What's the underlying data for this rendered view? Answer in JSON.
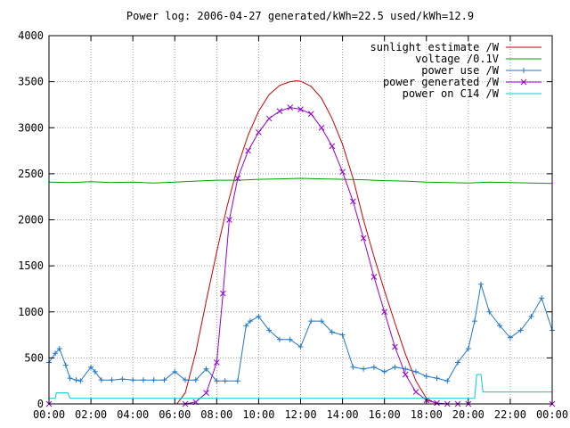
{
  "chart_data": {
    "type": "line",
    "title": "Power log: 2006-04-27 generated/kWh=22.5 used/kWh=12.9",
    "xlabel": "",
    "ylabel": "",
    "x_unit": "hours",
    "xlim": [
      0,
      24
    ],
    "ylim": [
      0,
      4000
    ],
    "grid": true,
    "legend_position": "top-right",
    "x_ticks": [
      {
        "value": 0,
        "label": "00:00"
      },
      {
        "value": 2,
        "label": "02:00"
      },
      {
        "value": 4,
        "label": "04:00"
      },
      {
        "value": 6,
        "label": "06:00"
      },
      {
        "value": 8,
        "label": "08:00"
      },
      {
        "value": 10,
        "label": "10:00"
      },
      {
        "value": 12,
        "label": "12:00"
      },
      {
        "value": 14,
        "label": "14:00"
      },
      {
        "value": 16,
        "label": "16:00"
      },
      {
        "value": 18,
        "label": "18:00"
      },
      {
        "value": 20,
        "label": "20:00"
      },
      {
        "value": 22,
        "label": "22:00"
      },
      {
        "value": 24,
        "label": "00:00"
      }
    ],
    "y_ticks": [
      0,
      500,
      1000,
      1500,
      2000,
      2500,
      3000,
      3500,
      4000
    ],
    "series": [
      {
        "name": "sunlight estimate /W",
        "color": "#cc0000",
        "marker": "none",
        "x": [
          0,
          6.1,
          6.5,
          7,
          7.5,
          8,
          8.5,
          9,
          9.5,
          10,
          10.5,
          11,
          11.5,
          11.8,
          12,
          12.5,
          13,
          13.5,
          14,
          14.5,
          15,
          15.5,
          16,
          16.5,
          17,
          17.5,
          18,
          18.5,
          19,
          19.5,
          20,
          24
        ],
        "y": [
          0,
          0,
          120,
          560,
          1120,
          1650,
          2150,
          2580,
          2920,
          3180,
          3360,
          3460,
          3500,
          3510,
          3505,
          3450,
          3320,
          3100,
          2820,
          2450,
          2000,
          1600,
          1230,
          880,
          540,
          250,
          60,
          0,
          0,
          0,
          0,
          0
        ]
      },
      {
        "name": "voltage /0.1V",
        "color": "#00a000",
        "marker": "none",
        "x": [
          0,
          1,
          2,
          3,
          4,
          5,
          6,
          7,
          8,
          9,
          10,
          11,
          12,
          13,
          14,
          15,
          16,
          17,
          18,
          19,
          20,
          21,
          22,
          23,
          24
        ],
        "y": [
          2410,
          2405,
          2415,
          2405,
          2410,
          2400,
          2410,
          2420,
          2430,
          2430,
          2440,
          2445,
          2450,
          2445,
          2440,
          2435,
          2425,
          2420,
          2410,
          2405,
          2400,
          2410,
          2405,
          2400,
          2395
        ]
      },
      {
        "name": "power use /W",
        "color": "#1f78c8",
        "marker": "plus",
        "x": [
          0,
          0.3,
          0.5,
          0.8,
          1.0,
          1.3,
          1.5,
          2.0,
          2.2,
          2.5,
          3.0,
          3.5,
          4.0,
          4.5,
          5.0,
          5.5,
          6.0,
          6.5,
          7.0,
          7.5,
          8.0,
          8.4,
          9.0,
          9.4,
          9.6,
          10.0,
          10.5,
          11.0,
          11.5,
          12.0,
          12.5,
          13.0,
          13.5,
          14.0,
          14.5,
          15.0,
          15.5,
          16.0,
          16.5,
          17.0,
          17.5,
          18.0,
          18.5,
          19.0,
          19.5,
          20.0,
          20.3,
          20.6,
          21.0,
          21.5,
          22.0,
          22.5,
          23.0,
          23.5,
          24.0
        ],
        "y": [
          450,
          550,
          600,
          420,
          280,
          260,
          250,
          400,
          350,
          260,
          260,
          270,
          260,
          260,
          260,
          260,
          350,
          260,
          260,
          380,
          250,
          250,
          250,
          850,
          900,
          950,
          800,
          700,
          700,
          620,
          900,
          900,
          780,
          750,
          400,
          380,
          400,
          350,
          400,
          380,
          350,
          300,
          280,
          250,
          450,
          600,
          900,
          1300,
          1000,
          850,
          720,
          800,
          950,
          1150,
          800
        ]
      },
      {
        "name": "power generated /W",
        "color": "#9400d3",
        "marker": "cross",
        "x": [
          0,
          6.5,
          7.0,
          7.5,
          8.0,
          8.3,
          8.6,
          9.0,
          9.5,
          10.0,
          10.5,
          11.0,
          11.5,
          12.0,
          12.5,
          13.0,
          13.5,
          14.0,
          14.5,
          15.0,
          15.5,
          16.0,
          16.5,
          17.0,
          17.5,
          18.0,
          18.5,
          19.0,
          19.5,
          20.0,
          24.0
        ],
        "y": [
          0,
          0,
          20,
          120,
          450,
          1200,
          2000,
          2450,
          2750,
          2950,
          3100,
          3180,
          3220,
          3200,
          3150,
          3000,
          2800,
          2520,
          2200,
          1800,
          1380,
          1000,
          620,
          320,
          130,
          40,
          10,
          0,
          0,
          0,
          0
        ]
      },
      {
        "name": "power on C14 /W",
        "color": "#00cccc",
        "marker": "none",
        "x": [
          0,
          0.3,
          0.35,
          0.9,
          1.0,
          20.3,
          20.4,
          20.6,
          20.7,
          24
        ],
        "y": [
          60,
          60,
          120,
          120,
          60,
          60,
          320,
          320,
          130,
          130
        ]
      }
    ]
  }
}
